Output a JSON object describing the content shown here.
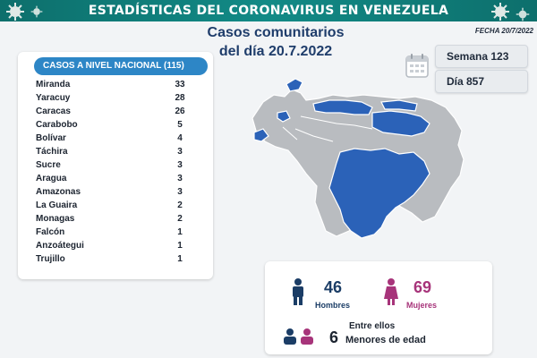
{
  "header": {
    "title": "ESTADÍSTICAS DEL CORONAVIRUS EN VENEZUELA"
  },
  "headline": {
    "line1": "Casos comunitarios",
    "line2": "del día 20.7.2022"
  },
  "fecha": "FECHA 20/7/2022",
  "semana": "Semana 123",
  "dia": "Día 857",
  "table": {
    "header": "CASOS A NIVEL NACIONAL (115)",
    "rows": [
      {
        "name": "Miranda",
        "value": "33"
      },
      {
        "name": "Yaracuy",
        "value": "28"
      },
      {
        "name": "Caracas",
        "value": "26"
      },
      {
        "name": "Carabobo",
        "value": "5"
      },
      {
        "name": "Bolívar",
        "value": "4"
      },
      {
        "name": "Táchira",
        "value": "3"
      },
      {
        "name": "Sucre",
        "value": "3"
      },
      {
        "name": "Aragua",
        "value": "3"
      },
      {
        "name": "Amazonas",
        "value": "3"
      },
      {
        "name": "La Guaira",
        "value": "2"
      },
      {
        "name": "Monagas",
        "value": "2"
      },
      {
        "name": "Falcón",
        "value": "1"
      },
      {
        "name": "Anzoátegui",
        "value": "1"
      },
      {
        "name": "Trujillo",
        "value": "1"
      }
    ]
  },
  "stats": {
    "hombres_count": "46",
    "hombres_label": "Hombres",
    "mujeres_count": "69",
    "mujeres_label": "Mujeres",
    "entre_ellos": "Entre ellos",
    "menores_count": "6",
    "menores_label": "Menores de edad"
  },
  "colors": {
    "banner": "#128a86",
    "table_header": "#2d86c6",
    "map_highlight": "#2b62b8",
    "map_base": "#b9bcc0",
    "male": "#1b3d66",
    "female": "#a7347a"
  },
  "icons": {
    "calendar": "calendar-icon",
    "male": "male-person-icon",
    "female": "female-person-icon",
    "children": "children-icon",
    "virus": "virus-icon"
  }
}
